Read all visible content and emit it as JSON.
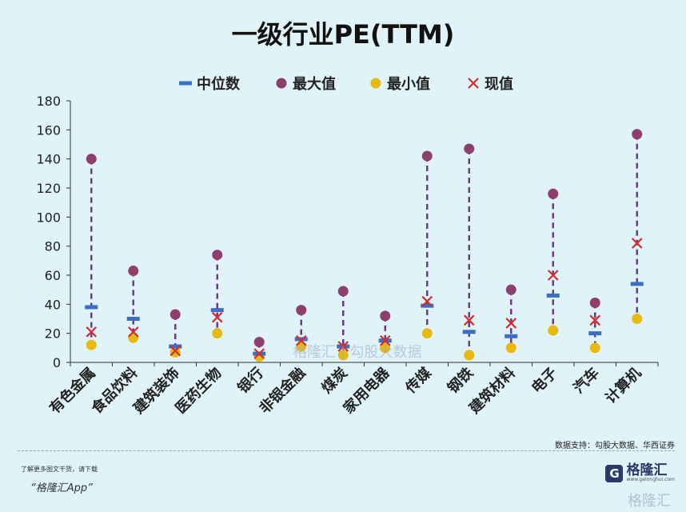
{
  "page": {
    "title": "一级行业PE(TTM)",
    "source": "数据支持：勾股大数据、华西证券",
    "promo_line1": "了解更多图文干货，请下载",
    "promo_line2": "“格隆汇App”",
    "logo_name": "格隆汇",
    "logo_url": "www.gelonghui.com",
    "watermark": "格隆汇  |  勾股大数据",
    "watermark_corner": "格隆汇"
  },
  "colors": {
    "median": "#3a6fc4",
    "max": "#8e3f6e",
    "min": "#e8b90f",
    "current": "#d8292b",
    "dash": "#6a3b8a",
    "axis": "#333333",
    "logo": "#2a3a6b"
  },
  "chart_data": {
    "type": "scatter",
    "title": "一级行业PE(TTM)",
    "categories": [
      "有色金属",
      "食品饮料",
      "建筑装饰",
      "医药生物",
      "银行",
      "非银金融",
      "煤炭",
      "家用电器",
      "传媒",
      "钢铁",
      "建筑材料",
      "电子",
      "汽车",
      "计算机"
    ],
    "ylim": [
      0,
      180
    ],
    "yticks": [
      0,
      20,
      40,
      60,
      80,
      100,
      120,
      140,
      160,
      180
    ],
    "legend_position": "top",
    "grid": false,
    "series": [
      {
        "name": "中位数",
        "marker": "bar",
        "values": [
          38,
          30,
          11,
          36,
          6,
          16,
          11,
          15,
          39,
          21,
          18,
          46,
          20,
          54
        ]
      },
      {
        "name": "最大值",
        "marker": "circle",
        "values": [
          140,
          63,
          33,
          74,
          14,
          36,
          49,
          32,
          142,
          147,
          50,
          116,
          41,
          157
        ]
      },
      {
        "name": "最小值",
        "marker": "circle",
        "values": [
          12,
          17,
          7,
          20,
          4,
          11,
          5,
          10,
          20,
          5,
          10,
          22,
          10,
          30
        ]
      },
      {
        "name": "现值",
        "marker": "cross",
        "values": [
          21,
          21,
          8,
          31,
          6,
          15,
          11,
          15,
          42,
          29,
          27,
          60,
          29,
          82
        ]
      }
    ]
  }
}
